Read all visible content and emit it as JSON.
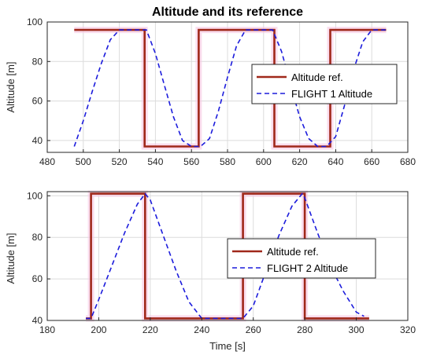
{
  "colors": {
    "reference": "#a0281a",
    "flight": "#1c1cdc",
    "grid": "#dcdcdc",
    "axis": "#262626",
    "highlight": "#f7c6e3"
  },
  "chart_data": [
    {
      "type": "line",
      "title": "Altitude and its reference",
      "xlabel": "",
      "ylabel": "Altitude [m]",
      "xlim": [
        480,
        680
      ],
      "ylim": [
        34,
        100
      ],
      "xticks": [
        480,
        500,
        520,
        540,
        560,
        580,
        600,
        620,
        640,
        660,
        680
      ],
      "yticks": [
        40,
        60,
        80,
        100
      ],
      "grid": true,
      "legend_position": "center-right",
      "series": [
        {
          "name": "Altitude ref.",
          "style": "solid",
          "x": [
            495,
            534,
            534,
            564,
            564,
            606,
            606,
            637,
            637,
            668
          ],
          "y": [
            96,
            96,
            37,
            37,
            96,
            96,
            37,
            37,
            96,
            96
          ]
        },
        {
          "name": "FLIGHT 1 Altitude",
          "style": "dashed",
          "x": [
            495,
            500,
            505,
            510,
            515,
            520,
            525,
            530,
            535,
            540,
            545,
            550,
            555,
            560,
            565,
            570,
            575,
            580,
            585,
            590,
            595,
            600,
            605,
            610,
            615,
            620,
            625,
            630,
            635,
            640,
            645,
            650,
            655,
            660,
            665,
            668
          ],
          "y": [
            37,
            50,
            65,
            79,
            91,
            96,
            96,
            96,
            96,
            84,
            68,
            52,
            40,
            37,
            37,
            41,
            55,
            72,
            88,
            96,
            96,
            96,
            96,
            85,
            68,
            52,
            41,
            37,
            37,
            42,
            58,
            76,
            90,
            96,
            96,
            96
          ]
        }
      ]
    },
    {
      "type": "line",
      "title": "",
      "xlabel": "Time [s]",
      "ylabel": "Altitude [m]",
      "xlim": [
        180,
        320
      ],
      "ylim": [
        40,
        102
      ],
      "xticks": [
        180,
        200,
        220,
        240,
        260,
        280,
        300,
        320
      ],
      "yticks": [
        40,
        60,
        80,
        100
      ],
      "grid": true,
      "legend_position": "center-right",
      "series": [
        {
          "name": "Altitude ref.",
          "style": "solid",
          "x": [
            195,
            197,
            197,
            218,
            218,
            256,
            256,
            280,
            280,
            305
          ],
          "y": [
            41,
            41,
            101,
            101,
            41,
            41,
            101,
            101,
            41,
            41
          ]
        },
        {
          "name": "FLIGHT 2 Altitude",
          "style": "dashed",
          "x": [
            195,
            197,
            200,
            205,
            210,
            215,
            218,
            220,
            225,
            230,
            235,
            240,
            245,
            250,
            256,
            260,
            265,
            270,
            275,
            279,
            280,
            285,
            290,
            295,
            300,
            303
          ],
          "y": [
            41,
            41,
            50,
            66,
            82,
            96,
            101,
            98,
            81,
            64,
            49,
            41,
            41,
            41,
            41,
            47,
            64,
            81,
            95,
            101,
            99,
            82,
            66,
            54,
            44,
            42
          ]
        }
      ]
    }
  ]
}
